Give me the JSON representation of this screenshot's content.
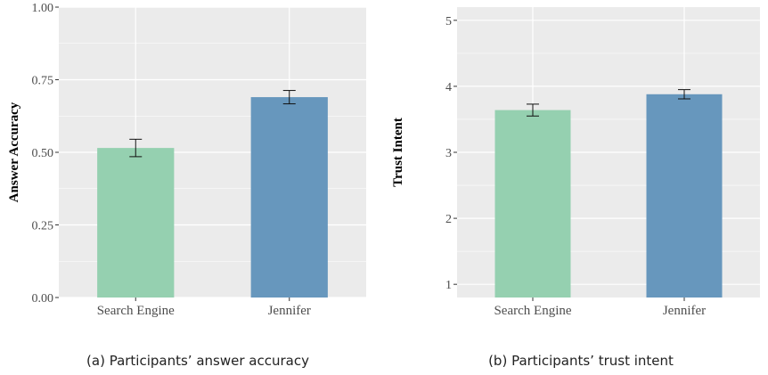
{
  "chart_data": [
    {
      "type": "bar",
      "categories": [
        "Search Engine",
        "Jennifer"
      ],
      "values": [
        0.515,
        0.69
      ],
      "error": [
        0.03,
        0.023
      ],
      "ylabel": "Answer Accuracy",
      "xlabel": "",
      "ylim": [
        0,
        1.0
      ],
      "yticks": [
        0.0,
        0.25,
        0.5,
        0.75,
        1.0
      ],
      "ytick_labels": [
        "0.00",
        "0.25",
        "0.50",
        "0.75",
        "1.00"
      ],
      "grid": true,
      "colors": [
        "#95d0b0",
        "#6797bd"
      ],
      "caption": "(a) Participants’ answer accuracy"
    },
    {
      "type": "bar",
      "categories": [
        "Search Engine",
        "Jennifer"
      ],
      "values": [
        3.64,
        3.88
      ],
      "error": [
        0.09,
        0.07
      ],
      "ylabel": "Trust Intent",
      "xlabel": "",
      "ylim": [
        0.8,
        5.2
      ],
      "yticks": [
        1,
        2,
        3,
        4,
        5
      ],
      "ytick_labels": [
        "1",
        "2",
        "3",
        "4",
        "5"
      ],
      "grid": true,
      "colors": [
        "#95d0b0",
        "#6797bd"
      ],
      "caption": "(b) Participants’ trust intent"
    }
  ],
  "style": {
    "panel_bg": "#ebebeb",
    "grid_major": "#ffffff",
    "tick_color": "#333333",
    "error_color": "#111111"
  }
}
